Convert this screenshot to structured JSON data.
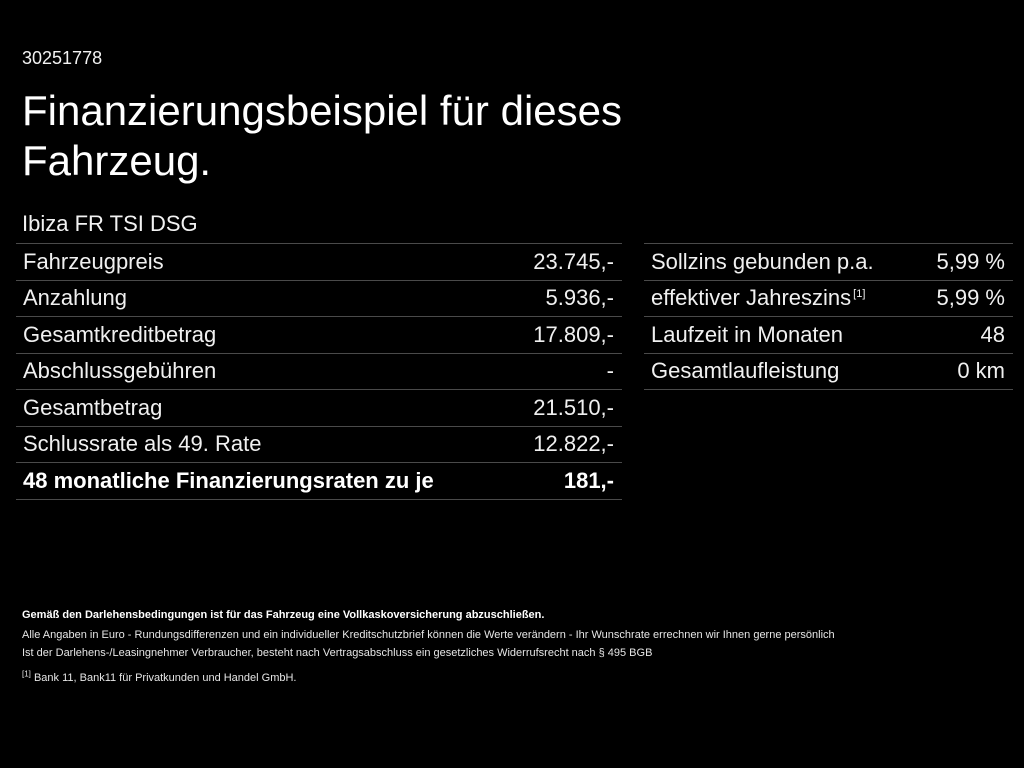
{
  "offer_id": "30251778",
  "title": "Finanzierungsbeispiel für dieses Fahrzeug.",
  "model": "Ibiza FR TSI DSG",
  "left_table": [
    {
      "label": "Fahrzeugpreis",
      "value": "23.745,-"
    },
    {
      "label": "Anzahlung",
      "value": "5.936,-"
    },
    {
      "label": "Gesamtkreditbetrag",
      "value": "17.809,-"
    },
    {
      "label": "Abschlussgebühren",
      "value": "-"
    },
    {
      "label": "Gesamtbetrag",
      "value": "21.510,-"
    },
    {
      "label": "Schlussrate als 49. Rate",
      "value": "12.822,-"
    },
    {
      "label": "48 monatliche Finanzierungsraten zu je",
      "value": "181,-"
    }
  ],
  "right_table": [
    {
      "label": "Sollzins gebunden p.a.",
      "value": "5,99 %"
    },
    {
      "label": "effektiver Jahreszins",
      "footnote": "[1]",
      "value": "5,99 %"
    },
    {
      "label": "Laufzeit in Monaten",
      "value": "48"
    },
    {
      "label": "Gesamtlaufleistung",
      "value": "0 km"
    }
  ],
  "footer": {
    "insurance_note": "Gemäß den Darlehensbedingungen ist für das Fahrzeug eine Vollkaskoversicherung abzuschließen.",
    "line1": "Alle Angaben in Euro - Rundungsdifferenzen und ein individueller Kreditschutzbrief können die Werte verändern - Ihr Wunschrate errechnen wir Ihnen gerne persönlich",
    "line2": "Ist der Darlehens-/Leasingnehmer Verbraucher, besteht nach Vertragsabschluss ein gesetzliches Widerrufsrecht nach § 495 BGB",
    "footnote_marker": "[1]",
    "footnote_text": "Bank 11, Bank11 für Privatkunden und Handel GmbH."
  }
}
